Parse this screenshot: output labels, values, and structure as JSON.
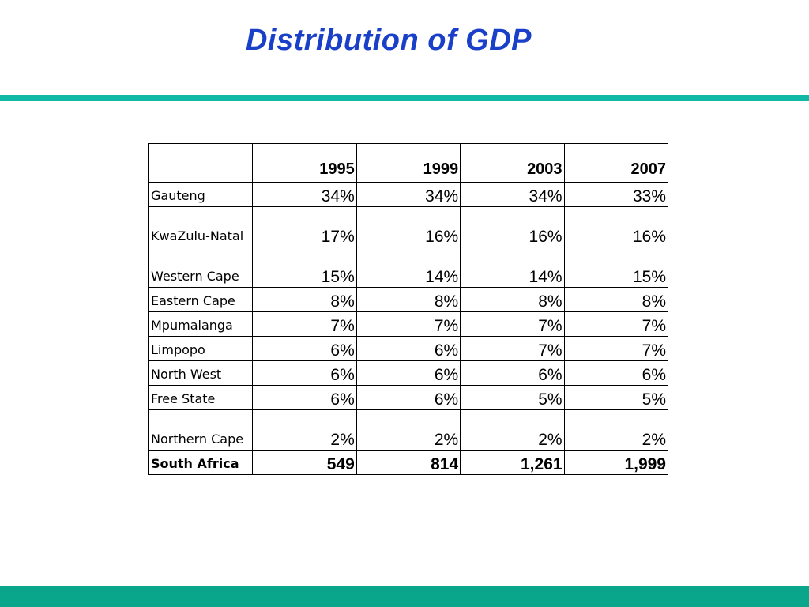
{
  "title": "Distribution of GDP",
  "colors": {
    "title": "#1a3fc8",
    "accent_bar": "#0fb9a6",
    "footer_bar": "#0aa68c"
  },
  "table": {
    "columns": [
      "1995",
      "1999",
      "2003",
      "2007"
    ],
    "rows": [
      {
        "label": "Gauteng",
        "values": [
          "34%",
          "34%",
          "34%",
          "33%"
        ]
      },
      {
        "label": "KwaZulu-Natal",
        "values": [
          "17%",
          "16%",
          "16%",
          "16%"
        ]
      },
      {
        "label": "Western Cape",
        "values": [
          "15%",
          "14%",
          "14%",
          "15%"
        ]
      },
      {
        "label": "Eastern Cape",
        "values": [
          "8%",
          "8%",
          "8%",
          "8%"
        ]
      },
      {
        "label": "Mpumalanga",
        "values": [
          "7%",
          "7%",
          "7%",
          "7%"
        ]
      },
      {
        "label": "Limpopo",
        "values": [
          "6%",
          "6%",
          "7%",
          "7%"
        ]
      },
      {
        "label": "North West",
        "values": [
          "6%",
          "6%",
          "6%",
          "6%"
        ]
      },
      {
        "label": "Free State",
        "values": [
          "6%",
          "6%",
          "5%",
          "5%"
        ]
      },
      {
        "label": "Northern Cape",
        "values": [
          "2%",
          "2%",
          "2%",
          "2%"
        ]
      },
      {
        "label": "South Africa",
        "values": [
          "549",
          "814",
          "1,261",
          "1,999"
        ]
      }
    ]
  }
}
